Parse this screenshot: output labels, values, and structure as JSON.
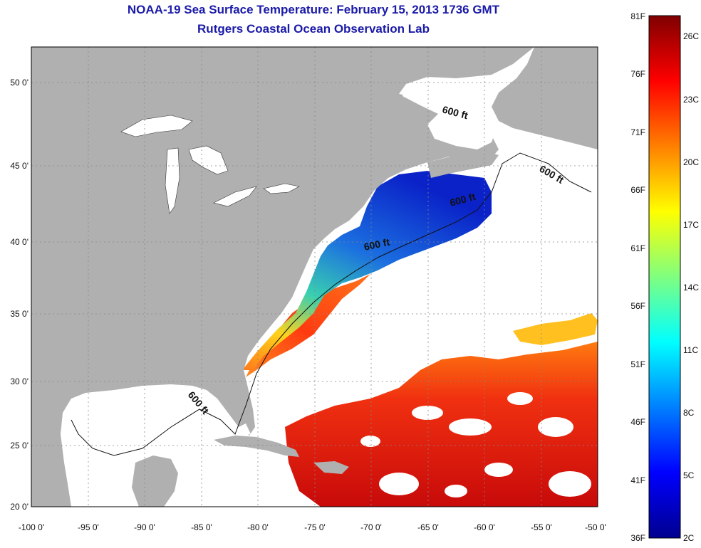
{
  "title_line1": "NOAA-19 Sea Surface Temperature:  February 15, 2013 1736 GMT",
  "title_line2": "Rutgers Coastal Ocean Observation Lab",
  "map": {
    "lon_ticks": [
      "-100 0'",
      "-95 0'",
      "-90 0'",
      "-85 0'",
      "-80 0'",
      "-75 0'",
      "-70 0'",
      "-65 0'",
      "-60 0'",
      "-55 0'",
      "-50 0'"
    ],
    "lat_ticks": [
      "50 0'",
      "45 0'",
      "40 0'",
      "35 0'",
      "30 0'",
      "25 0'",
      "20 0'"
    ],
    "depth_label": "600 ft",
    "colors": {
      "land": "#b0b0b0",
      "ocean_no_data": "#ffffff",
      "grid": "#888888"
    }
  },
  "colorbar": {
    "fahrenheit_labels": [
      "81F",
      "76F",
      "71F",
      "66F",
      "61F",
      "56F",
      "51F",
      "46F",
      "41F",
      "36F"
    ],
    "celsius_labels": [
      "26C",
      "23C",
      "20C",
      "17C",
      "14C",
      "11C",
      "8C",
      "5C",
      "2C"
    ],
    "colormap": "jet"
  }
}
